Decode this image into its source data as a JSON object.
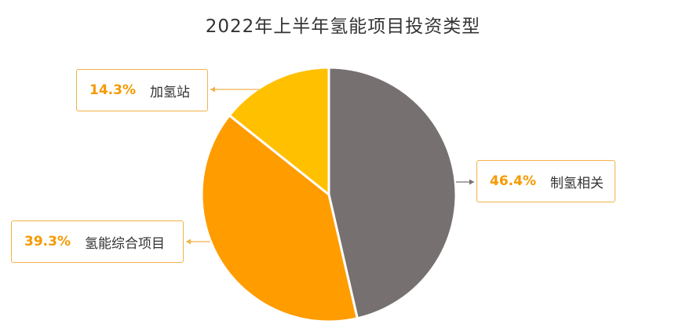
{
  "title": "2022年上半年氢能项目投资类型",
  "chart_data": {
    "type": "pie",
    "title": "2022年上半年氢能项目投资类型",
    "slices": [
      {
        "label": "制氢相关",
        "value": 46.4,
        "display": "46.4%",
        "color": "#767170"
      },
      {
        "label": "氢能综合项目",
        "value": 39.3,
        "display": "39.3%",
        "color": "#ff9c00"
      },
      {
        "label": "加氢站",
        "value": 14.3,
        "display": "14.3%",
        "color": "#ffc000"
      }
    ],
    "start_angle_deg": 0,
    "direction": "clockwise",
    "accent_color": "#f59a00",
    "callout_border_color": "#f2b24a"
  }
}
